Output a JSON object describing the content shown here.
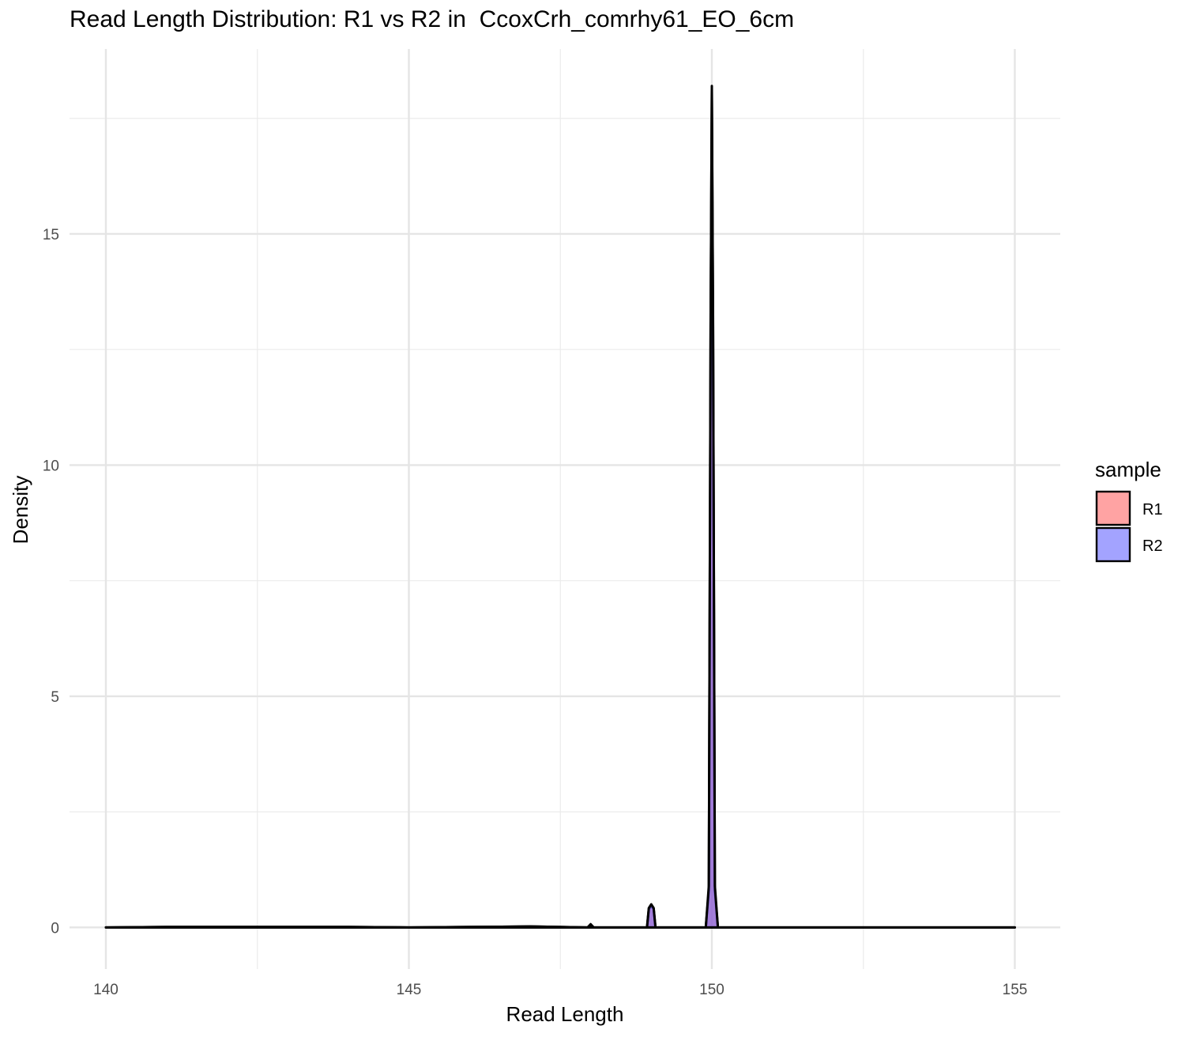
{
  "chart_data": {
    "type": "area",
    "title": "Read Length Distribution: R1 vs R2 in  CcoxCrh_comrhy61_EO_6cm",
    "xlabel": "Read Length",
    "ylabel": "Density",
    "xlim": [
      139.4,
      155.75
    ],
    "ylim": [
      -0.9,
      19.0
    ],
    "xticks": [
      140,
      145,
      150,
      155
    ],
    "yticks": [
      0,
      5,
      10,
      15
    ],
    "grid": true,
    "legend": {
      "title": "sample",
      "position": "right"
    },
    "series": [
      {
        "name": "R1",
        "color": "#ff6666",
        "x": [
          140,
          141,
          142,
          143,
          144,
          145,
          146,
          147,
          147.95,
          148.0,
          148.05,
          148.93,
          148.96,
          149.0,
          149.04,
          149.07,
          149.9,
          149.95,
          149.98,
          150.0,
          150.02,
          150.05,
          150.1,
          151,
          152,
          153,
          154,
          155
        ],
        "values": [
          0,
          0.01,
          0.01,
          0.01,
          0.01,
          0,
          0.01,
          0.02,
          0,
          0.07,
          0,
          0,
          0.4,
          0.47,
          0.4,
          0,
          0,
          0.8,
          13.0,
          18.1,
          13.0,
          0.8,
          0,
          0,
          0,
          0,
          0,
          0
        ]
      },
      {
        "name": "R2",
        "color": "#6666ff",
        "x": [
          140,
          141,
          142,
          143,
          144,
          145,
          146,
          147,
          147.95,
          148.0,
          148.05,
          148.93,
          148.96,
          149.0,
          149.04,
          149.07,
          149.9,
          149.95,
          149.98,
          150.0,
          150.02,
          150.05,
          150.1,
          151,
          152,
          153,
          154,
          155
        ],
        "values": [
          0,
          0.01,
          0.01,
          0.01,
          0.01,
          0,
          0.01,
          0.02,
          0,
          0.06,
          0,
          0,
          0.42,
          0.5,
          0.42,
          0,
          0,
          0.9,
          13.2,
          18.2,
          13.2,
          0.9,
          0,
          0,
          0,
          0,
          0,
          0
        ]
      }
    ]
  }
}
